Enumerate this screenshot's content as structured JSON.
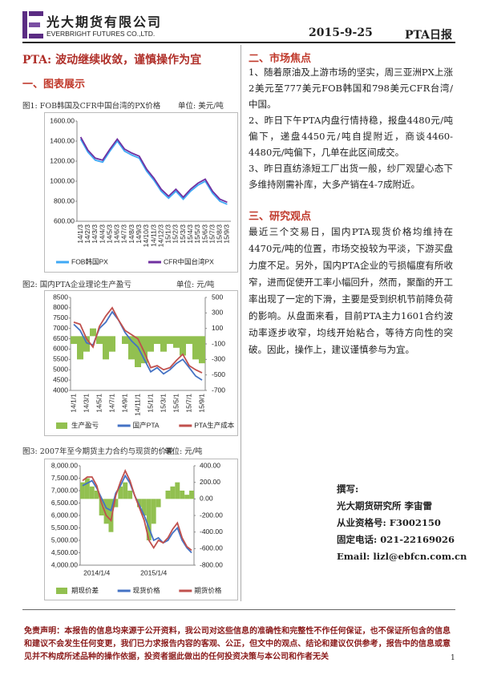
{
  "header": {
    "company_cn": "光大期货有限公司",
    "company_en": "EVERBRIGHT FUTURES CO.,LTD.",
    "date": "2015-9-25",
    "report": "PTA日报"
  },
  "title": "PTA: 波动继续收敛，谨慎操作为宜",
  "section1": "一、图表展示",
  "section2": {
    "heading": "二、市场焦点",
    "items": [
      "1、随着原油及上游市场的坚实，周三亚洲PX上涨2美元至777美元FOB韩国和798美元CFR台湾/中国。",
      "2、昨日下午PTA内盘行情持稳，报盘4480元/吨偏下，递盘4450元/吨自提附近，商谈4460-4480元/吨偏下，几单在此区间成交。",
      "3、昨日直纺涤短工厂出货一般，纱厂观望心态下多维持刚需补库，大多产销在4-7成附近。"
    ]
  },
  "section3": {
    "heading": "三、研究观点",
    "text": "最近三个交易日，国内PTA现货价格均维持在4470元/吨的位置，市场交投较为平淡，下游买盘力度不足。另外，国内PTA企业的亏损幅度有所收窄，进而促使开工率小幅回升，然而，聚酯的开工率出现了一定的下滑，主要是受到织机节前降负荷的影响。从盘面来看，目前PTA主力1601合约波动率逐步收窄，均线开始粘合，等待方向性的突破。因此，操作上，建议谨慎参与为宜。"
  },
  "contact": [
    "撰写:",
    "光大期货研究所 李宙雷",
    "从业资格号: F3002150",
    "固定电话: 021-22169026",
    "Email: lizl@ebfcn.com.cn"
  ],
  "disclaimer": "免责声明：本报告的信息均来源于公开资料，我公司对这些信息的准确性和完整性不作任何保证，也不保证所包含的信息和建议不会发生任何变更，我们已力求报告内容的客观、公正，但文中的观点、结论和建议仅供参考，报告中的信息或意见并不构成所述品种的操作依据，投资者据此做出的任何投资决策与本公司和作者无关",
  "page_number": "1",
  "chart_data": [
    {
      "type": "line",
      "title": "图1: FOB韩国及CFR中国台湾的PX价格",
      "unit": "单位: 美元/吨",
      "categories": [
        "14/1/3",
        "14/2/3",
        "14/3/3",
        "14/4/3",
        "14/5/3",
        "14/6/3",
        "14/7/3",
        "14/8/3",
        "14/9/3",
        "14/10/3",
        "14/11/3",
        "14/12/3",
        "15/1/3",
        "15/2/3",
        "15/3/3",
        "15/4/3",
        "15/5/3",
        "15/6/3",
        "15/7/3",
        "15/8/3",
        "15/9/3"
      ],
      "series": [
        {
          "name": "FOB韩国PX",
          "color": "#3fa9f5",
          "type": "line",
          "values": [
            1420,
            1290,
            1210,
            1190,
            1300,
            1400,
            1300,
            1260,
            1230,
            1100,
            1010,
            900,
            830,
            900,
            820,
            900,
            960,
            1000,
            880,
            800,
            770
          ]
        },
        {
          "name": "CFR中国台湾PX",
          "color": "#7030a0",
          "type": "line",
          "values": [
            1440,
            1310,
            1230,
            1210,
            1320,
            1420,
            1320,
            1280,
            1250,
            1120,
            1030,
            920,
            850,
            920,
            840,
            920,
            980,
            1020,
            900,
            820,
            790
          ]
        }
      ],
      "ylim": [
        600,
        1600
      ],
      "yticks": [
        {
          "value": 600,
          "label": "600.00"
        },
        {
          "value": 800,
          "label": "800.00"
        },
        {
          "value": 1000,
          "label": "1000.00"
        },
        {
          "value": 1200,
          "label": "1200.00"
        },
        {
          "value": 1400,
          "label": "1400.00"
        },
        {
          "value": 1600,
          "label": "1600.00"
        }
      ]
    },
    {
      "type": "combo",
      "title": "图2: 国内PTA企业理论生产盈亏",
      "unit": "单位: 元/吨",
      "categories": [
        "14/1/1",
        null,
        "14/3/1",
        null,
        "14/5/1",
        null,
        "14/7/1",
        null,
        "14/9/1",
        null,
        "14/11/1",
        null,
        "15/1/1",
        null,
        "15/3/1",
        null,
        "15/5/1",
        null,
        "15/7/1",
        null,
        "15/9/1"
      ],
      "series": [
        {
          "name": "生产盈亏",
          "color": "#92c050",
          "type": "bar",
          "axis": "y2",
          "values": [
            -100,
            -300,
            -200,
            100,
            -100,
            -300,
            -200,
            0,
            -100,
            -300,
            -400,
            -350,
            -200,
            -100,
            -200,
            -100,
            -150,
            -250,
            -100,
            -300,
            -350
          ]
        },
        {
          "name": "国产PTA",
          "color": "#4472c4",
          "type": "line",
          "values": [
            7200,
            6900,
            6300,
            6200,
            7000,
            7300,
            7800,
            7400,
            6800,
            6400,
            6100,
            5500,
            4900,
            5100,
            4800,
            5000,
            5300,
            5500,
            5100,
            4700,
            4500
          ]
        },
        {
          "name": "PTA生产成本",
          "color": "#c0504d",
          "type": "line",
          "values": [
            7300,
            7200,
            6500,
            6100,
            7100,
            7600,
            8000,
            7400,
            6900,
            6700,
            6500,
            5850,
            5100,
            5200,
            5000,
            5100,
            5450,
            5750,
            5200,
            5000,
            4850
          ]
        }
      ],
      "ylim": [
        4000,
        8500
      ],
      "yticks": [
        4000,
        4500,
        5000,
        5500,
        6000,
        6500,
        7000,
        7500,
        8000,
        8500
      ],
      "y2lim": [
        -700,
        500
      ],
      "y2ticks": [
        -700,
        -500,
        -300,
        -100,
        100,
        300,
        500
      ]
    },
    {
      "type": "combo",
      "title": "图3: 2007年至今期货主力合约与现货的价差",
      "unit": "单位: 元/吨",
      "categories": [
        null,
        null,
        null,
        "2014/1/4",
        null,
        null,
        null,
        null,
        null,
        null,
        null,
        null,
        null,
        null,
        null,
        "2015/1/4",
        null,
        null,
        null,
        null,
        null,
        null,
        null,
        null
      ],
      "series": [
        {
          "name": "期现价差",
          "color": "#92c050",
          "type": "bar",
          "axis": "y2",
          "values": [
            200,
            250,
            150,
            100,
            -200,
            -300,
            -400,
            -100,
            150,
            200,
            100,
            0,
            -100,
            -200,
            -500,
            -300,
            -100,
            0,
            100,
            150,
            200,
            100,
            50,
            100
          ]
        },
        {
          "name": "现货价格",
          "color": "#4472c4",
          "type": "line",
          "values": [
            7200,
            7300,
            7400,
            7100,
            6700,
            6300,
            6200,
            6900,
            7200,
            7600,
            7300,
            6800,
            6400,
            6000,
            5500,
            5000,
            5100,
            4900,
            5000,
            5300,
            5500,
            5000,
            4700,
            4500
          ]
        },
        {
          "name": "期货价格",
          "color": "#c0504d",
          "type": "line",
          "values": [
            7400,
            7550,
            7550,
            7200,
            6500,
            6000,
            5800,
            6800,
            7350,
            7800,
            7400,
            6800,
            6300,
            5800,
            5000,
            4700,
            5000,
            4900,
            5100,
            5450,
            5700,
            5100,
            4750,
            4600
          ]
        }
      ],
      "ylim": [
        4000,
        8000
      ],
      "yticks": [
        {
          "value": 4000,
          "label": "4,000.00"
        },
        {
          "value": 4500,
          "label": "4,500.00"
        },
        {
          "value": 5000,
          "label": "5,000.00"
        },
        {
          "value": 5500,
          "label": "5,500.00"
        },
        {
          "value": 6000,
          "label": "6,000.00"
        },
        {
          "value": 6500,
          "label": "6,500.00"
        },
        {
          "value": 7000,
          "label": "7,000.00"
        },
        {
          "value": 7500,
          "label": "7,500.00"
        },
        {
          "value": 8000,
          "label": "8,000.00"
        }
      ],
      "y2lim": [
        -800,
        400
      ],
      "y2ticks": [
        {
          "value": -800,
          "label": "-800.00"
        },
        {
          "value": -600,
          "label": "-600.00"
        },
        {
          "value": -400,
          "label": "-400.00"
        },
        {
          "value": -200,
          "label": "-200.00"
        },
        {
          "value": 0,
          "label": "0.00"
        },
        {
          "value": 200,
          "label": "200.00"
        },
        {
          "value": 400,
          "label": "400.00"
        }
      ]
    }
  ]
}
